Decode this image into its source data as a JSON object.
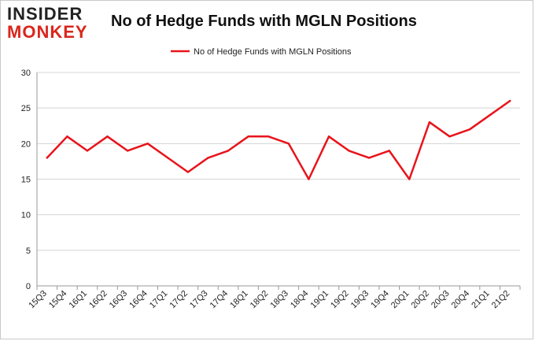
{
  "logo": {
    "line1": "INSIDER",
    "line2": "MONKEY"
  },
  "chart_data": {
    "type": "line",
    "title": "No of Hedge Funds with MGLN Positions",
    "xlabel": "",
    "ylabel": "",
    "categories": [
      "15Q3",
      "15Q4",
      "16Q1",
      "16Q2",
      "16Q3",
      "16Q4",
      "17Q1",
      "17Q2",
      "17Q3",
      "17Q4",
      "18Q1",
      "18Q2",
      "18Q3",
      "18Q4",
      "19Q1",
      "19Q2",
      "19Q3",
      "19Q4",
      "20Q1",
      "20Q2",
      "20Q3",
      "20Q4",
      "21Q1",
      "21Q2"
    ],
    "series": [
      {
        "name": "No of Hedge Funds with MGLN Positions",
        "color": "#e8141b",
        "values": [
          18,
          21,
          19,
          21,
          19,
          20,
          18,
          16,
          18,
          19,
          21,
          21,
          20,
          15,
          21,
          19,
          18,
          19,
          15,
          23,
          21,
          22,
          24,
          26
        ]
      }
    ],
    "ylim": [
      0,
      30
    ],
    "yticks": [
      0,
      5,
      10,
      15,
      20,
      25,
      30
    ],
    "grid": true,
    "legend_position": "top-center"
  }
}
